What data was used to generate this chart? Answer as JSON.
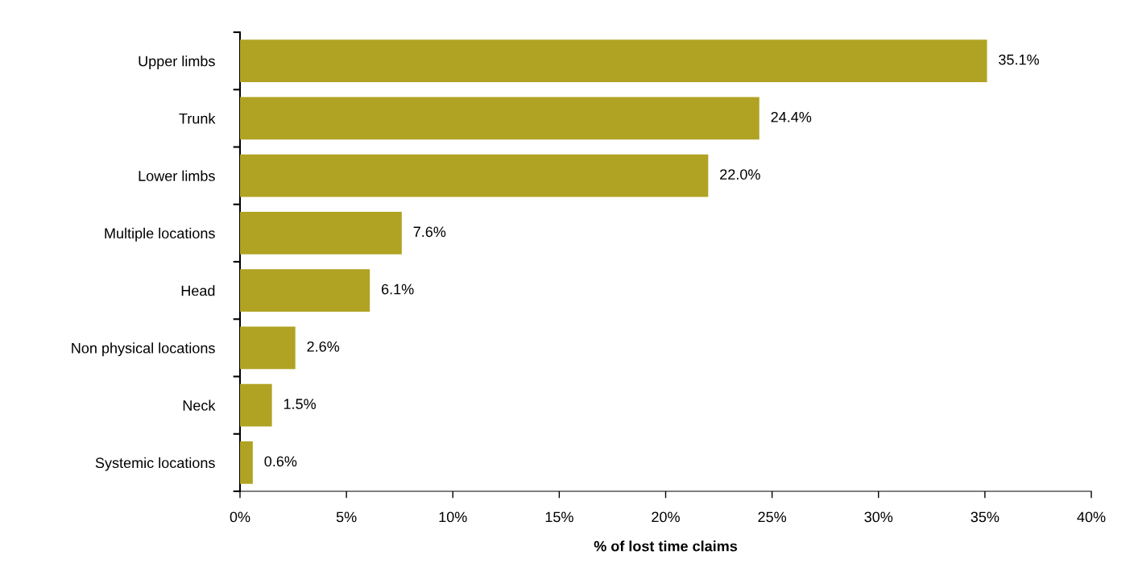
{
  "chart_data": {
    "type": "bar",
    "orientation": "horizontal",
    "categories": [
      "Upper limbs",
      "Trunk",
      "Lower limbs",
      "Multiple locations",
      "Head",
      "Non physical locations",
      "Neck",
      "Systemic locations"
    ],
    "values": [
      35.1,
      24.4,
      22.0,
      7.6,
      6.1,
      2.6,
      1.5,
      0.6
    ],
    "value_labels": [
      "35.1%",
      "24.4%",
      "22.0%",
      "7.6%",
      "6.1%",
      "2.6%",
      "1.5%",
      "0.6%"
    ],
    "color": "#b0a323",
    "xlabel": "% of lost time claims",
    "xlim": [
      0,
      40
    ],
    "xticks": [
      {
        "value": 0,
        "label": "0%"
      },
      {
        "value": 5,
        "label": "5%"
      },
      {
        "value": 10,
        "label": "10%"
      },
      {
        "value": 15,
        "label": "15%"
      },
      {
        "value": 20,
        "label": "20%"
      },
      {
        "value": 25,
        "label": "25%"
      },
      {
        "value": 30,
        "label": "30%"
      },
      {
        "value": 35,
        "label": "35%"
      },
      {
        "value": 40,
        "label": "40%"
      }
    ],
    "grid": false
  }
}
